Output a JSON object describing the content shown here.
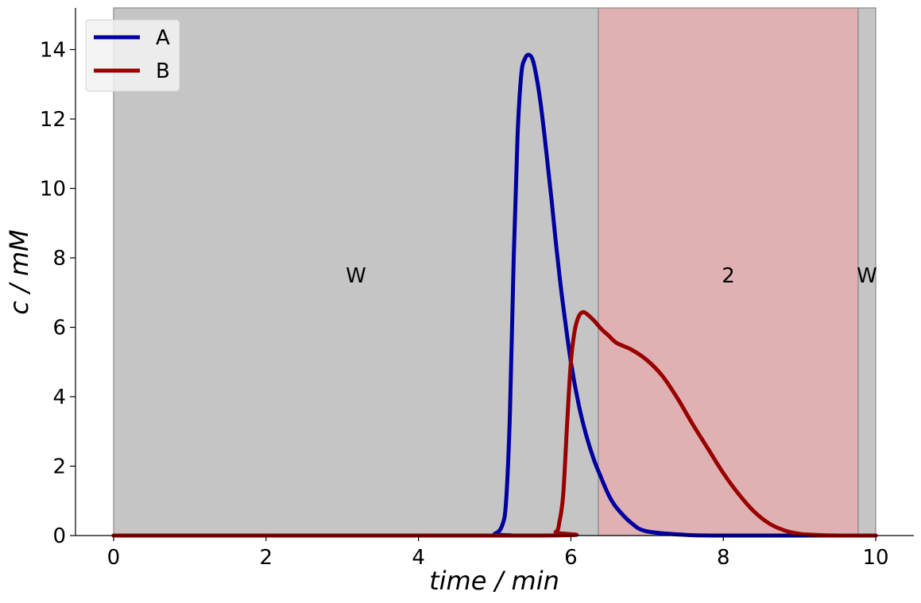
{
  "chart_data": {
    "type": "line",
    "xlabel": "time / min",
    "ylabel": "c / mM",
    "xlim": [
      -0.5,
      10.5
    ],
    "ylim": [
      0,
      15.2
    ],
    "xticks": [
      0,
      2,
      4,
      6,
      8,
      10
    ],
    "yticks": [
      0,
      2,
      4,
      6,
      8,
      10,
      12,
      14
    ],
    "grid": false,
    "legend_position": "top-left",
    "regions": [
      {
        "label": "W",
        "x_start": 0,
        "x_end": 6.36,
        "color": "#c5c5c5"
      },
      {
        "label": "2",
        "x_start": 6.36,
        "x_end": 9.77,
        "color": "#e0b1b2"
      },
      {
        "label": "W",
        "x_start": 9.77,
        "x_end": 10,
        "color": "#c5c5c5"
      }
    ],
    "series": [
      {
        "name": "A",
        "color": "#0000a0",
        "x": [
          0,
          4.8,
          5.0,
          5.1,
          5.15,
          5.2,
          5.25,
          5.3,
          5.35,
          5.4,
          5.45,
          5.5,
          5.55,
          5.6,
          5.65,
          5.7,
          5.75,
          5.8,
          5.85,
          5.9,
          6.0,
          6.1,
          6.2,
          6.3,
          6.4,
          6.5,
          6.6,
          6.8,
          7.0,
          7.5,
          8.0,
          10.0
        ],
        "y": [
          0,
          0,
          0.05,
          0.3,
          1.0,
          3.5,
          8.0,
          11.5,
          13.3,
          13.75,
          13.85,
          13.7,
          13.2,
          12.5,
          11.6,
          10.6,
          9.6,
          8.5,
          7.5,
          6.6,
          5.0,
          3.8,
          2.9,
          2.2,
          1.65,
          1.15,
          0.8,
          0.35,
          0.12,
          0.02,
          0,
          0
        ]
      },
      {
        "name": "B",
        "color": "#990000",
        "x": [
          0,
          5.6,
          5.8,
          5.85,
          5.9,
          5.95,
          6.0,
          6.05,
          6.1,
          6.15,
          6.2,
          6.3,
          6.4,
          6.5,
          6.6,
          6.8,
          7.0,
          7.2,
          7.4,
          7.6,
          7.8,
          8.0,
          8.2,
          8.4,
          8.6,
          8.8,
          9.0,
          9.2,
          9.5,
          10.0
        ],
        "y": [
          0,
          0,
          0.1,
          0.4,
          1.2,
          3.2,
          5.0,
          5.9,
          6.3,
          6.43,
          6.4,
          6.2,
          5.95,
          5.75,
          5.55,
          5.35,
          5.05,
          4.6,
          3.95,
          3.2,
          2.5,
          1.8,
          1.2,
          0.7,
          0.35,
          0.15,
          0.05,
          0.02,
          0,
          0
        ]
      }
    ]
  }
}
